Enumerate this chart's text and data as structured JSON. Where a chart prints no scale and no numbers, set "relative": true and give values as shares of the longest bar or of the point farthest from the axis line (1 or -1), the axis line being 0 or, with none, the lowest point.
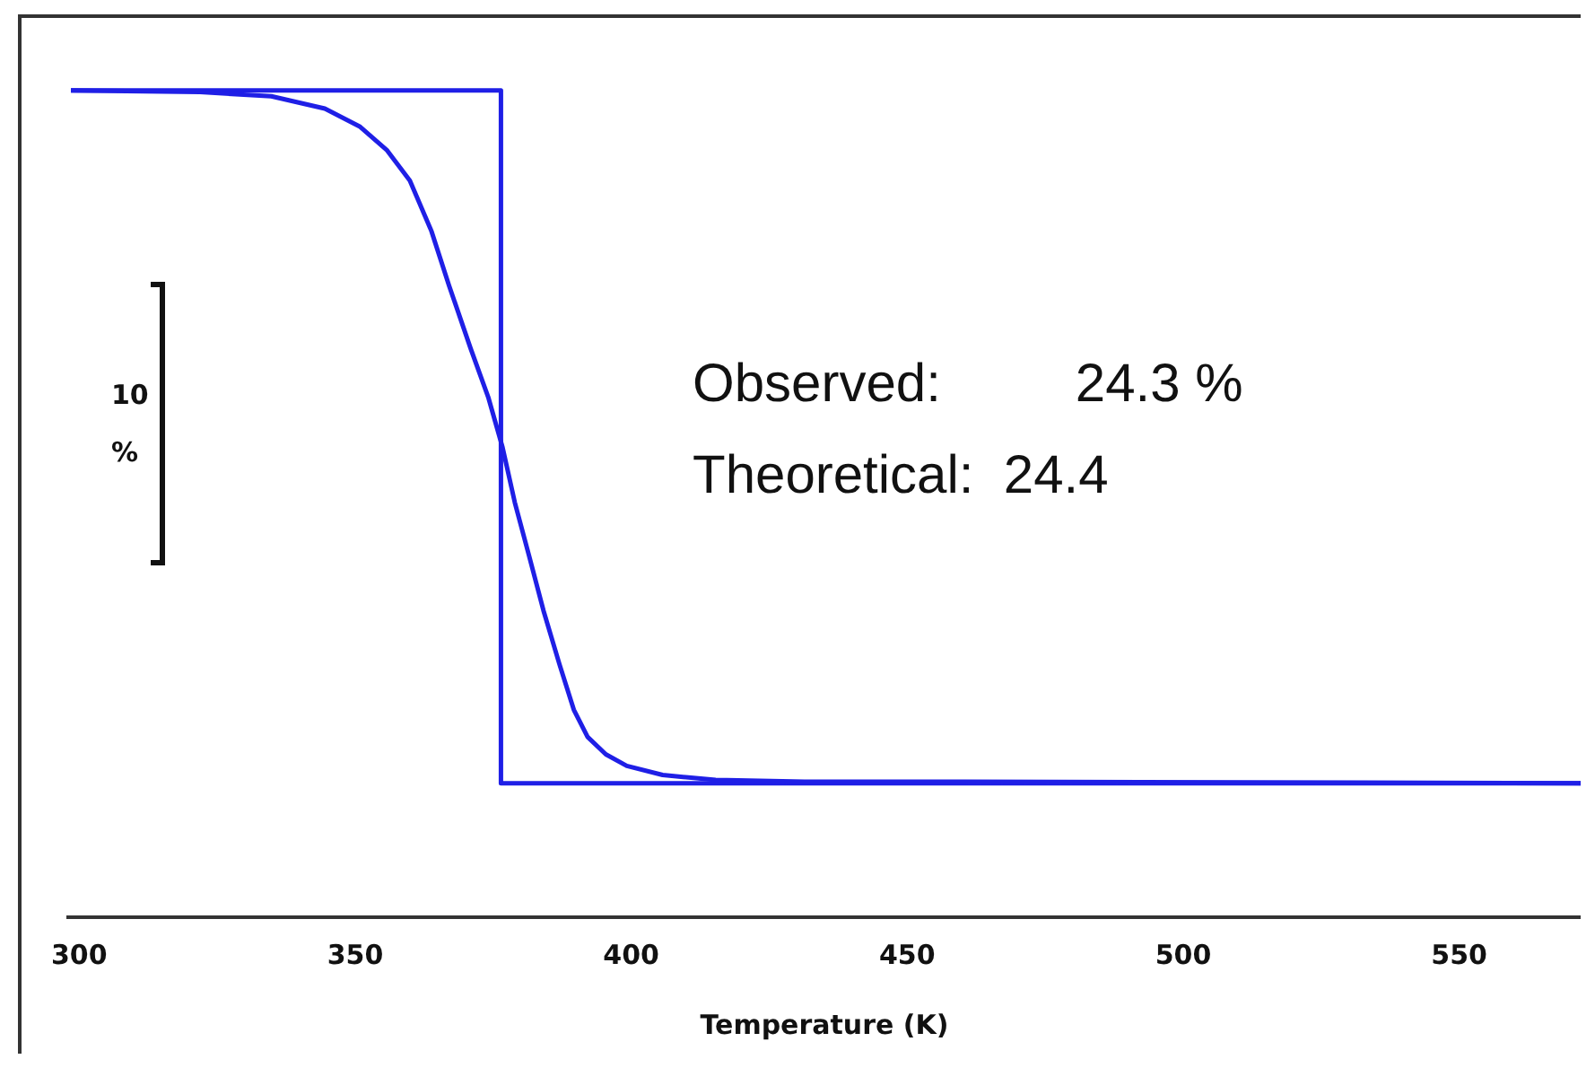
{
  "chart_data": {
    "type": "line",
    "relative": true,
    "xlabel": "Temperature (K)",
    "xlim": [
      298,
      572
    ],
    "xticks": [
      300,
      350,
      400,
      450,
      500,
      550
    ],
    "grid": false,
    "legend": false,
    "marker": "none",
    "line_style": "solid",
    "annotations": [
      "10\n%",
      "Observed:     24.3 %",
      "Theoretical:  24.4"
    ],
    "series": [
      {
        "color": "#1f1fe6",
        "x": [
          298.5,
          321.9,
          334.8,
          344.5,
          350.9,
          355.7,
          359.9,
          363.8,
          367.0,
          370.9,
          374.1,
          376.7,
          378.9,
          381.5,
          384.1,
          387.0,
          389.6,
          392.1,
          395.4,
          399.2,
          405.7,
          415.3,
          431.4,
          460.4,
          572
        ],
        "values": [
          1.0,
          0.998,
          0.993,
          0.978,
          0.956,
          0.928,
          0.891,
          0.83,
          0.764,
          0.688,
          0.629,
          0.568,
          0.502,
          0.437,
          0.371,
          0.306,
          0.251,
          0.218,
          0.197,
          0.183,
          0.172,
          0.166,
          0.164,
          0.164,
          0.162
        ]
      },
      {
        "color": "#1f1fe6",
        "x": [
          298.5,
          376.4,
          376.4,
          572
        ],
        "values": [
          1.0,
          1.0,
          0.162,
          0.162
        ]
      }
    ]
  }
}
